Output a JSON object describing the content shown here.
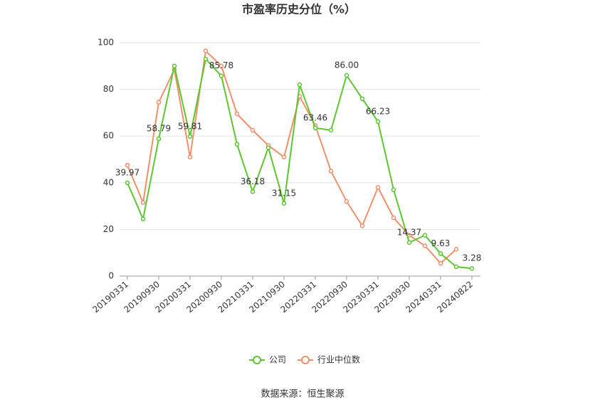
{
  "chart_data": {
    "type": "line",
    "title": "市盈率历史分位（%）",
    "categories": [
      "20190331",
      null,
      "20190930",
      null,
      "20200331",
      null,
      "20200930",
      null,
      "20210331",
      null,
      "20210930",
      null,
      "20220331",
      null,
      "20220930",
      null,
      "20230331",
      null,
      "20230930",
      null,
      "20240331",
      null,
      "20240822"
    ],
    "series": [
      {
        "name": "公司",
        "color": "#5cc72e",
        "values": [
          39.97,
          24.5,
          58.79,
          90,
          59.81,
          93,
          85.78,
          56.5,
          36.18,
          55,
          31.15,
          82,
          63.46,
          62.5,
          86,
          76,
          66.23,
          37,
          14.37,
          17.5,
          9.63,
          4,
          3.28
        ],
        "value_labels": [
          "39.97",
          null,
          "58.79",
          null,
          "59.81",
          null,
          "85.78",
          null,
          "36.18",
          null,
          "31.15",
          null,
          "63.46",
          null,
          "86.00",
          null,
          "66.23",
          null,
          "14.37",
          null,
          "9.63",
          null,
          "3.28"
        ]
      },
      {
        "name": "行业中位数",
        "color": "#f0906a",
        "values": [
          47.5,
          31.5,
          74.5,
          88.5,
          51,
          96.5,
          90,
          69.5,
          62.5,
          56,
          51,
          77,
          64.5,
          45,
          32,
          21.5,
          38,
          25,
          17.5,
          13,
          5.5,
          11.5,
          null
        ]
      }
    ],
    "ylim": [
      0,
      100
    ],
    "yticks": [
      0,
      20,
      40,
      60,
      80,
      100
    ],
    "grid": true,
    "source": "数据来源：恒生聚源"
  }
}
